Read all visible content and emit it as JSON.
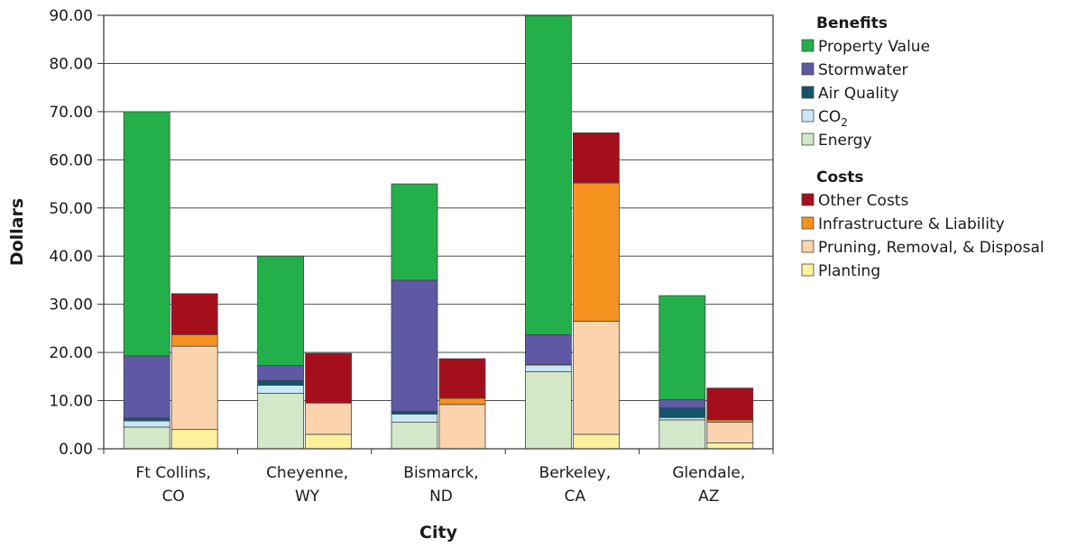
{
  "chart_data": {
    "type": "bar",
    "stacked": true,
    "xlabel": "City",
    "ylabel": "Dollars",
    "ylim": [
      0,
      90
    ],
    "y_ticks": [
      "0.00",
      "10.00",
      "20.00",
      "30.00",
      "40.00",
      "50.00",
      "60.00",
      "70.00",
      "80.00",
      "90.00"
    ],
    "categories": [
      {
        "line1": "Ft Collins,",
        "line2": "CO"
      },
      {
        "line1": "Cheyenne,",
        "line2": "WY"
      },
      {
        "line1": "Bismarck,",
        "line2": "ND"
      },
      {
        "line1": "Berkeley,",
        "line2": "CA"
      },
      {
        "line1": "Glendale,",
        "line2": "AZ"
      }
    ],
    "benefits": {
      "title": "Benefits",
      "series": [
        {
          "name": "Energy",
          "color": "#d3e8c9",
          "values": [
            4.5,
            11.5,
            5.5,
            16.0,
            6.0
          ]
        },
        {
          "name": "CO",
          "name_sub": "2",
          "color": "#c9e7f4",
          "values": [
            1.3,
            1.7,
            1.7,
            1.4,
            0.5
          ]
        },
        {
          "name": "Air Quality",
          "color": "#13546b",
          "values": [
            0.6,
            1.0,
            0.6,
            0.1,
            2.0
          ]
        },
        {
          "name": "Stormwater",
          "color": "#5f58a5",
          "values": [
            12.9,
            3.1,
            27.2,
            6.2,
            1.7
          ]
        },
        {
          "name": "Property Value",
          "color": "#23b04b",
          "values": [
            50.7,
            22.7,
            20.0,
            66.3,
            21.6
          ]
        }
      ]
    },
    "costs": {
      "title": "Costs",
      "series": [
        {
          "name": "Planting",
          "color": "#fdf19e",
          "values": [
            4.0,
            3.0,
            0.0,
            3.0,
            1.2
          ]
        },
        {
          "name": "Pruning, Removal, & Disposal",
          "color": "#fbd3ad",
          "values": [
            17.3,
            6.5,
            9.2,
            23.5,
            4.3
          ]
        },
        {
          "name": "Infrastructure & Liability",
          "color": "#f6931f",
          "values": [
            2.4,
            0.0,
            1.3,
            28.7,
            0.5
          ]
        },
        {
          "name": "Other Costs",
          "color": "#a50f1c",
          "values": [
            8.5,
            10.3,
            8.2,
            10.4,
            6.6
          ]
        }
      ]
    },
    "legend_order": {
      "benefits": [
        "Property Value",
        "Stormwater",
        "Air Quality",
        "CO",
        "Energy"
      ],
      "costs": [
        "Other Costs",
        "Infrastructure & Liability",
        "Pruning, Removal, & Disposal",
        "Planting"
      ]
    },
    "grid": true,
    "legend_position": "right"
  }
}
